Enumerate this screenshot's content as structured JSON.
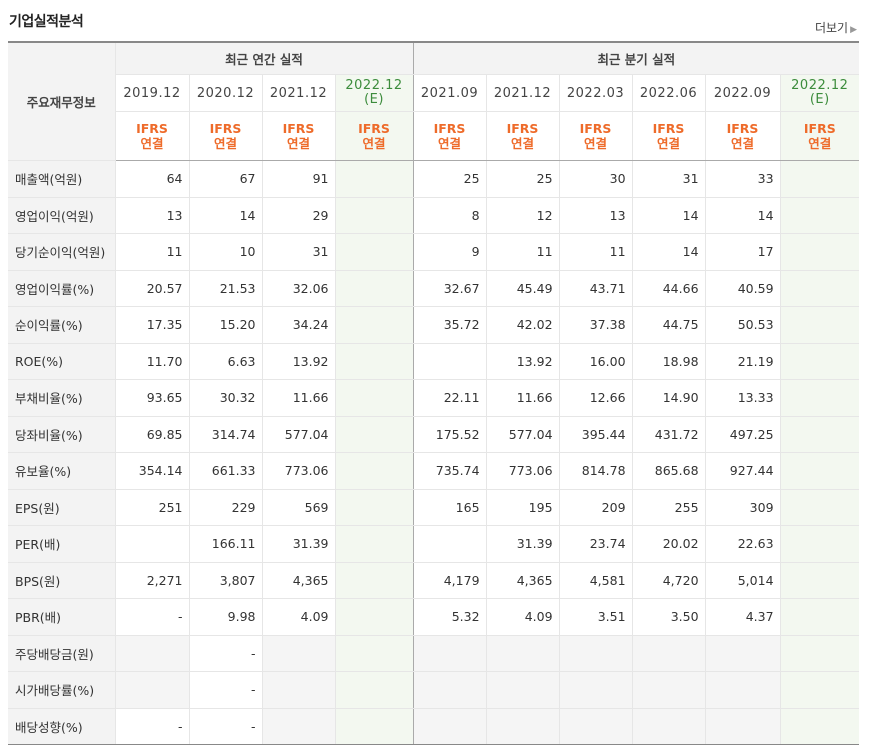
{
  "header": {
    "title": "기업실적분석",
    "more_label": "더보기"
  },
  "table": {
    "row_header": "주요재무정보",
    "groups": [
      "최근 연간 실적",
      "최근 분기 실적"
    ],
    "periods": [
      "2019.12",
      "2020.12",
      "2021.12",
      "2022.12",
      "2021.09",
      "2021.12",
      "2022.03",
      "2022.06",
      "2022.09",
      "2022.12"
    ],
    "estimate_suffix": "(E)",
    "ifrs_label": "IFRS",
    "ifrs_sub": "연결",
    "rows": [
      {
        "label": "매출액(억원)",
        "values": [
          "64",
          "67",
          "91",
          "",
          "25",
          "25",
          "30",
          "31",
          "33",
          ""
        ]
      },
      {
        "label": "영업이익(억원)",
        "values": [
          "13",
          "14",
          "29",
          "",
          "8",
          "12",
          "13",
          "14",
          "14",
          ""
        ]
      },
      {
        "label": "당기순이익(억원)",
        "values": [
          "11",
          "10",
          "31",
          "",
          "9",
          "11",
          "11",
          "14",
          "17",
          ""
        ]
      },
      {
        "label": "영업이익률(%)",
        "values": [
          "20.57",
          "21.53",
          "32.06",
          "",
          "32.67",
          "45.49",
          "43.71",
          "44.66",
          "40.59",
          ""
        ]
      },
      {
        "label": "순이익률(%)",
        "values": [
          "17.35",
          "15.20",
          "34.24",
          "",
          "35.72",
          "42.02",
          "37.38",
          "44.75",
          "50.53",
          ""
        ]
      },
      {
        "label": "ROE(%)",
        "values": [
          "11.70",
          "6.63",
          "13.92",
          "",
          "",
          "13.92",
          "16.00",
          "18.98",
          "21.19",
          ""
        ]
      },
      {
        "label": "부채비율(%)",
        "values": [
          "93.65",
          "30.32",
          "11.66",
          "",
          "22.11",
          "11.66",
          "12.66",
          "14.90",
          "13.33",
          ""
        ]
      },
      {
        "label": "당좌비율(%)",
        "values": [
          "69.85",
          "314.74",
          "577.04",
          "",
          "175.52",
          "577.04",
          "395.44",
          "431.72",
          "497.25",
          ""
        ]
      },
      {
        "label": "유보율(%)",
        "values": [
          "354.14",
          "661.33",
          "773.06",
          "",
          "735.74",
          "773.06",
          "814.78",
          "865.68",
          "927.44",
          ""
        ]
      },
      {
        "label": "EPS(원)",
        "values": [
          "251",
          "229",
          "569",
          "",
          "165",
          "195",
          "209",
          "255",
          "309",
          ""
        ]
      },
      {
        "label": "PER(배)",
        "values": [
          "",
          "166.11",
          "31.39",
          "",
          "",
          "31.39",
          "23.74",
          "20.02",
          "22.63",
          ""
        ]
      },
      {
        "label": "BPS(원)",
        "values": [
          "2,271",
          "3,807",
          "4,365",
          "",
          "4,179",
          "4,365",
          "4,581",
          "4,720",
          "5,014",
          ""
        ]
      },
      {
        "label": "PBR(배)",
        "values": [
          "-",
          "9.98",
          "4.09",
          "",
          "5.32",
          "4.09",
          "3.51",
          "3.50",
          "4.37",
          ""
        ]
      },
      {
        "label": "주당배당금(원)",
        "values": [
          "",
          "-",
          "",
          "",
          "",
          "",
          "",
          "",
          "",
          ""
        ]
      },
      {
        "label": "시가배당률(%)",
        "values": [
          "",
          "-",
          "",
          "",
          "",
          "",
          "",
          "",
          "",
          ""
        ]
      },
      {
        "label": "배당성향(%)",
        "values": [
          "-",
          "-",
          "",
          "",
          "",
          "",
          "",
          "",
          "",
          ""
        ]
      }
    ]
  }
}
